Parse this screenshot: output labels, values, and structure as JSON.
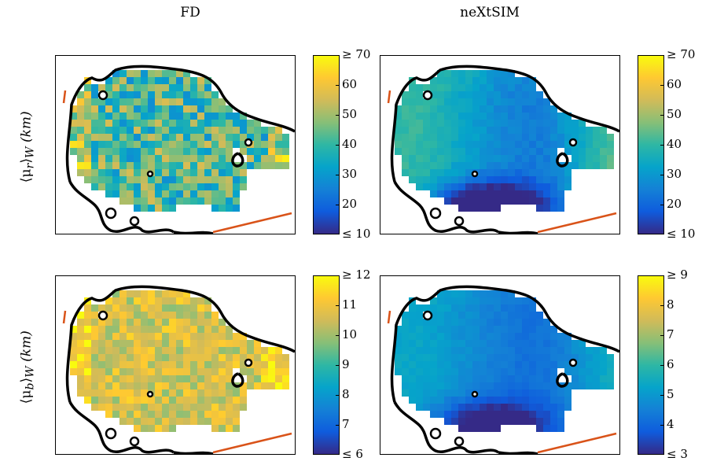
{
  "columns": [
    "FD",
    "neXtSIM"
  ],
  "rows": [
    {
      "label_main": "⟨μ",
      "label_sub": "r",
      "label_rest": "⟩",
      "label_sub2": "W",
      "label_unit": "(km)"
    },
    {
      "label_main": "⟨μ",
      "label_sub": "b",
      "label_rest": "⟩",
      "label_sub2": "W",
      "label_unit": "(km)"
    }
  ],
  "colormap": {
    "name": "parula",
    "stops": [
      "#352a87",
      "#0f5cdd",
      "#1481d6",
      "#06a4ca",
      "#2eb7a4",
      "#87bf77",
      "#d1bb59",
      "#fec832",
      "#f9fb0e"
    ]
  },
  "chart_data": [
    {
      "type": "heatmap",
      "title": "FD",
      "ylabel": "⟨μr⟩W (km)",
      "colorbar": {
        "min": 10,
        "max": 70,
        "ticks": [
          "≤ 10",
          "20",
          "30",
          "40",
          "50",
          "60",
          "≥ 70"
        ],
        "tick_values": [
          10,
          20,
          30,
          40,
          50,
          60,
          70
        ]
      },
      "field_mean": 42,
      "field_spread": 18,
      "pattern": "noisy"
    },
    {
      "type": "heatmap",
      "title": "neXtSIM",
      "ylabel": "⟨μr⟩W (km)",
      "colorbar": {
        "min": 10,
        "max": 70,
        "ticks": [
          "≤ 10",
          "20",
          "30",
          "40",
          "50",
          "60",
          "≥ 70"
        ],
        "tick_values": [
          10,
          20,
          30,
          40,
          50,
          60,
          70
        ]
      },
      "field_mean": 30,
      "field_spread": 28,
      "pattern": "smooth-low-south"
    },
    {
      "type": "heatmap",
      "title": "FD",
      "ylabel": "⟨μb⟩W (km)",
      "colorbar": {
        "min": 6,
        "max": 12,
        "ticks": [
          "≤ 6",
          "7",
          "8",
          "9",
          "10",
          "11",
          "≥ 12"
        ],
        "tick_values": [
          6,
          7,
          8,
          9,
          10,
          11,
          12
        ]
      },
      "field_mean": 10.6,
      "field_spread": 1.2,
      "pattern": "noisy-high"
    },
    {
      "type": "heatmap",
      "title": "neXtSIM",
      "ylabel": "⟨μb⟩W (km)",
      "colorbar": {
        "min": 3,
        "max": 9,
        "ticks": [
          "≤ 3",
          "4",
          "5",
          "6",
          "7",
          "8",
          "≥ 9"
        ],
        "tick_values": [
          3,
          4,
          5,
          6,
          7,
          8,
          9
        ]
      },
      "field_mean": 4.6,
      "field_spread": 2.0,
      "pattern": "smooth-low-south"
    }
  ]
}
